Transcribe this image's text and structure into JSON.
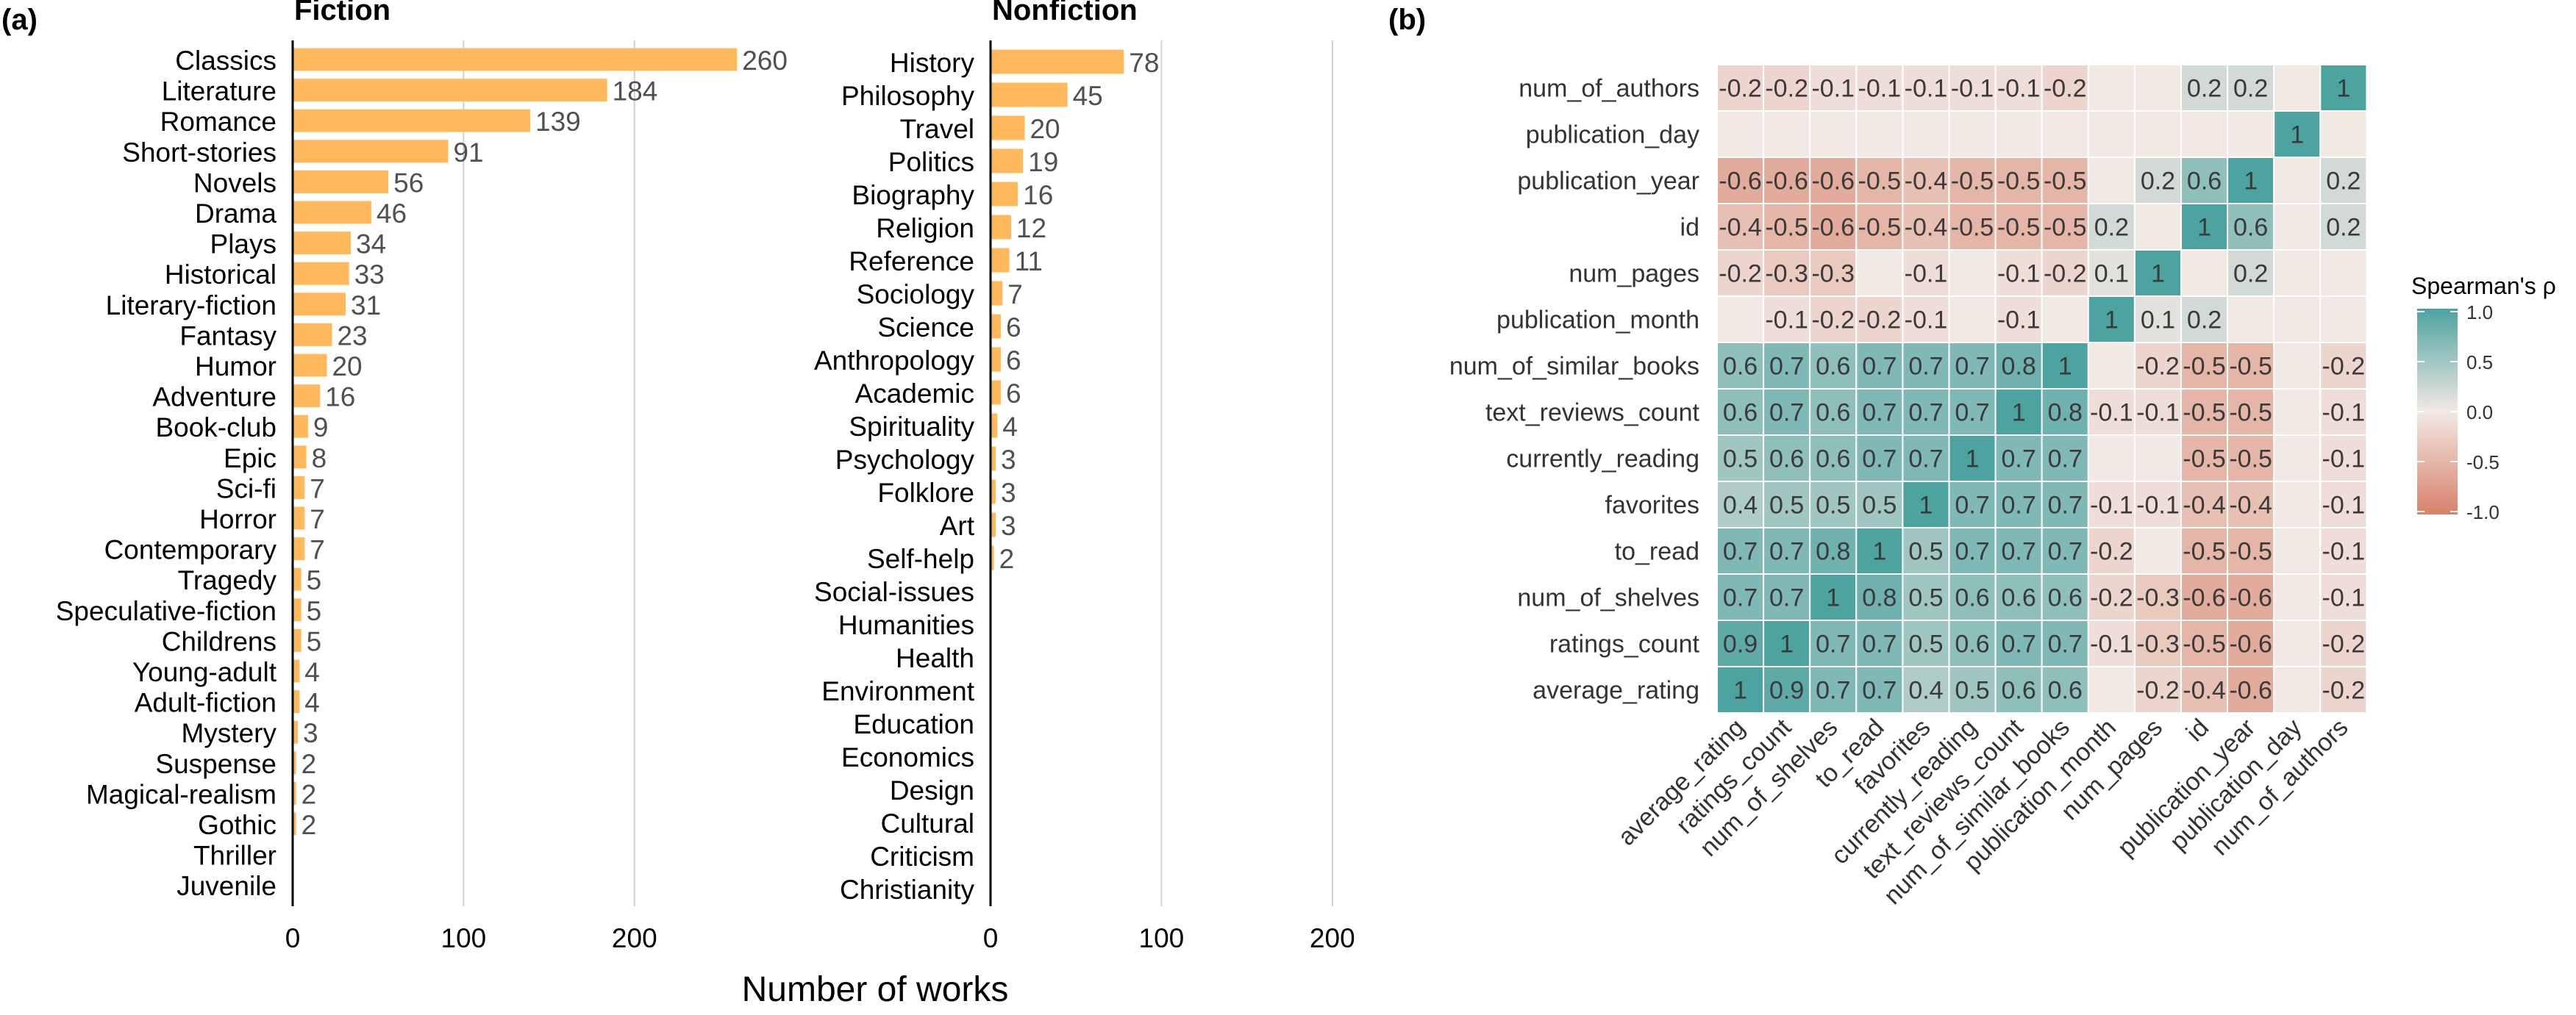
{
  "panels": {
    "a_label": "(a)",
    "b_label": "(b)",
    "shared_xlabel": "Number of works"
  },
  "colors": {
    "bar": "#ffb95c",
    "grid": "#d0d0d0",
    "heat_neg": "#d8826a",
    "heat_mid": "#f2e8e4",
    "heat_pos": "#4da3a0"
  },
  "chart_data": [
    {
      "type": "bar",
      "orientation": "horizontal",
      "title": "Fiction",
      "xlabel": "Number of works",
      "xlim": [
        0,
        250
      ],
      "xticks": [
        0,
        100,
        200
      ],
      "grid": true,
      "categories": [
        "Classics",
        "Literature",
        "Romance",
        "Short-stories",
        "Novels",
        "Drama",
        "Plays",
        "Historical",
        "Literary-fiction",
        "Fantasy",
        "Humor",
        "Adventure",
        "Book-club",
        "Epic",
        "Sci-fi",
        "Horror",
        "Contemporary",
        "Tragedy",
        "Speculative-fiction",
        "Childrens",
        "Young-adult",
        "Adult-fiction",
        "Mystery",
        "Suspense",
        "Magical-realism",
        "Gothic",
        "Thriller",
        "Juvenile"
      ],
      "values": [
        260,
        184,
        139,
        91,
        56,
        46,
        34,
        33,
        31,
        23,
        20,
        16,
        9,
        8,
        7,
        7,
        7,
        5,
        5,
        5,
        4,
        4,
        3,
        2,
        2,
        2,
        null,
        null
      ]
    },
    {
      "type": "bar",
      "orientation": "horizontal",
      "title": "Nonfiction",
      "xlabel": "Number of works",
      "xlim": [
        0,
        250
      ],
      "xticks": [
        0,
        100,
        200
      ],
      "grid": true,
      "categories": [
        "History",
        "Philosophy",
        "Travel",
        "Politics",
        "Biography",
        "Religion",
        "Reference",
        "Sociology",
        "Science",
        "Anthropology",
        "Academic",
        "Spirituality",
        "Psychology",
        "Folklore",
        "Art",
        "Self-help",
        "Social-issues",
        "Humanities",
        "Health",
        "Environment",
        "Education",
        "Economics",
        "Design",
        "Cultural",
        "Criticism",
        "Christianity"
      ],
      "values": [
        78,
        45,
        20,
        19,
        16,
        12,
        11,
        7,
        6,
        6,
        6,
        4,
        3,
        3,
        3,
        2,
        null,
        null,
        null,
        null,
        null,
        null,
        null,
        null,
        null,
        null
      ]
    },
    {
      "type": "heatmap",
      "title": "",
      "x_labels": [
        "average_rating",
        "ratings_count",
        "num_of_shelves",
        "to_read",
        "favorites",
        "currently_reading",
        "text_reviews_count",
        "num_of_similar_books",
        "publication_month",
        "num_pages",
        "id",
        "publication_year",
        "publication_day",
        "num_of_authors"
      ],
      "y_labels": [
        "num_of_authors",
        "publication_day",
        "publication_year",
        "id",
        "num_pages",
        "publication_month",
        "num_of_similar_books",
        "text_reviews_count",
        "currently_reading",
        "favorites",
        "to_read",
        "num_of_shelves",
        "ratings_count",
        "average_rating"
      ],
      "values": [
        [
          "-0.2",
          "-0.2",
          "-0.1",
          "-0.1",
          "-0.1",
          "-0.1",
          "-0.1",
          "-0.2",
          "",
          "",
          "0.2",
          "0.2",
          "",
          "1"
        ],
        [
          "",
          "",
          "",
          "",
          "",
          "",
          "",
          "",
          "",
          "",
          "",
          "",
          "1",
          ""
        ],
        [
          "-0.6",
          "-0.6",
          "-0.6",
          "-0.5",
          "-0.4",
          "-0.5",
          "-0.5",
          "-0.5",
          "",
          "0.2",
          "0.6",
          "1",
          "",
          "0.2"
        ],
        [
          "-0.4",
          "-0.5",
          "-0.6",
          "-0.5",
          "-0.4",
          "-0.5",
          "-0.5",
          "-0.5",
          "0.2",
          "",
          "1",
          "0.6",
          "",
          "0.2"
        ],
        [
          "-0.2",
          "-0.3",
          "-0.3",
          "",
          "-0.1",
          "",
          "-0.1",
          "-0.2",
          "0.1",
          "1",
          "",
          "0.2",
          "",
          ""
        ],
        [
          "",
          "-0.1",
          "-0.2",
          "-0.2",
          "-0.1",
          "",
          "-0.1",
          "",
          "1",
          "0.1",
          "0.2",
          "",
          "",
          ""
        ],
        [
          "0.6",
          "0.7",
          "0.6",
          "0.7",
          "0.7",
          "0.7",
          "0.8",
          "1",
          "",
          "-0.2",
          "-0.5",
          "-0.5",
          "",
          "-0.2"
        ],
        [
          "0.6",
          "0.7",
          "0.6",
          "0.7",
          "0.7",
          "0.7",
          "1",
          "0.8",
          "-0.1",
          "-0.1",
          "-0.5",
          "-0.5",
          "",
          "-0.1"
        ],
        [
          "0.5",
          "0.6",
          "0.6",
          "0.7",
          "0.7",
          "1",
          "0.7",
          "0.7",
          "",
          "",
          "-0.5",
          "-0.5",
          "",
          "-0.1"
        ],
        [
          "0.4",
          "0.5",
          "0.5",
          "0.5",
          "1",
          "0.7",
          "0.7",
          "0.7",
          "-0.1",
          "-0.1",
          "-0.4",
          "-0.4",
          "",
          "-0.1"
        ],
        [
          "0.7",
          "0.7",
          "0.8",
          "1",
          "0.5",
          "0.7",
          "0.7",
          "0.7",
          "-0.2",
          "",
          "-0.5",
          "-0.5",
          "",
          "-0.1"
        ],
        [
          "0.7",
          "0.7",
          "1",
          "0.8",
          "0.5",
          "0.6",
          "0.6",
          "0.6",
          "-0.2",
          "-0.3",
          "-0.6",
          "-0.6",
          "",
          "-0.1"
        ],
        [
          "0.9",
          "1",
          "0.7",
          "0.7",
          "0.5",
          "0.6",
          "0.7",
          "0.7",
          "-0.1",
          "-0.3",
          "-0.5",
          "-0.6",
          "",
          "-0.2"
        ],
        [
          "1",
          "0.9",
          "0.7",
          "0.7",
          "0.4",
          "0.5",
          "0.6",
          "0.6",
          "",
          "-0.2",
          "-0.4",
          "-0.6",
          "",
          "-0.2"
        ]
      ],
      "legend": {
        "title": "Spearman's ρ",
        "range": [
          -1,
          1
        ],
        "ticks": [
          "1.0",
          "0.5",
          "0.0",
          "-0.5",
          "-1.0"
        ],
        "placement": "right"
      }
    }
  ]
}
